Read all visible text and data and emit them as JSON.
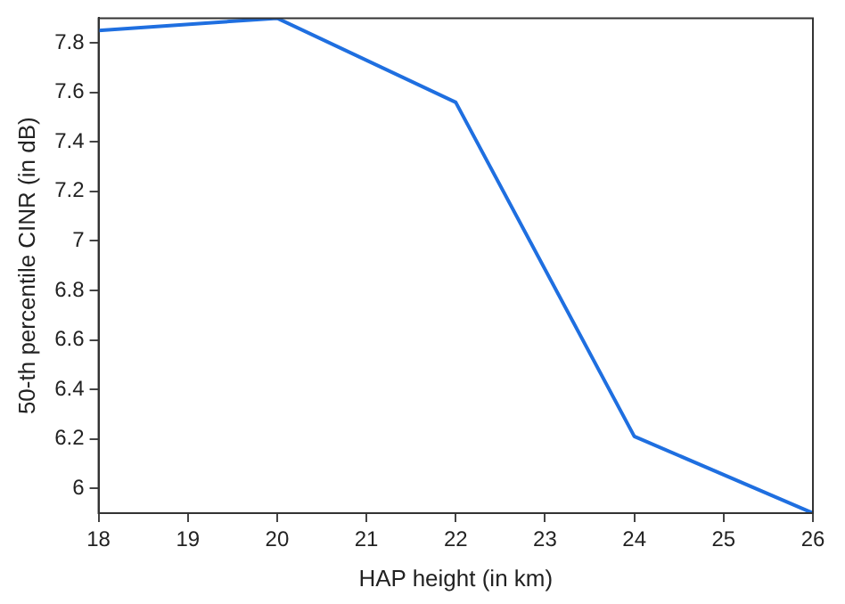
{
  "chart_data": {
    "type": "line",
    "xlabel": "HAP height (in km)",
    "ylabel": "50-th percentile CINR (in dB)",
    "x": [
      18,
      20,
      22,
      24,
      26
    ],
    "series": [
      {
        "color": "#1f6fe0",
        "values": [
          7.85,
          7.9,
          7.56,
          6.21,
          5.9
        ]
      }
    ],
    "xlim": [
      18,
      26
    ],
    "xticks": [
      18,
      19,
      20,
      21,
      22,
      23,
      24,
      25,
      26
    ],
    "ylim": [
      5.9,
      7.9
    ],
    "yticks": [
      6,
      6.2,
      6.4,
      6.6,
      6.8,
      7,
      7.2,
      7.4,
      7.6,
      7.8
    ],
    "grid": false,
    "legend": false,
    "marker": "none",
    "line_style": "solid"
  }
}
